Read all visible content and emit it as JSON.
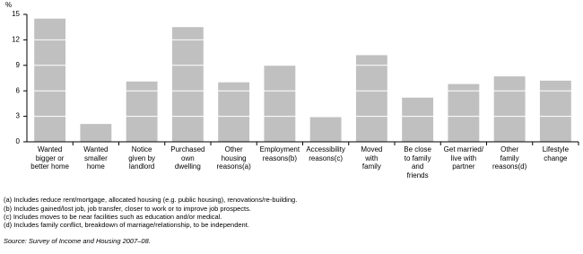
{
  "chart_data": {
    "type": "bar",
    "y_label": "%",
    "categories": [
      "Wanted\nbigger or\nbetter home",
      "Wanted\nsmaller\nhome",
      "Notice\ngiven by\nlandlord",
      "Purchased\nown\ndwelling",
      "Other\nhousing\nreasons(a)",
      "Employment\nreasons(b)",
      "Accessibility\nreasons(c)",
      "Moved\nwith\nfamily",
      "Be close\nto family\nand\nfriends",
      "Get married/\nlive with\npartner",
      "Other\nfamily\nreasons(d)",
      "Lifestyle\nchange"
    ],
    "values": [
      14.5,
      2.1,
      7.1,
      13.5,
      7.0,
      9.0,
      2.9,
      10.2,
      5.2,
      6.8,
      7.7,
      7.2
    ],
    "color": "#c0c0c0",
    "ylim": [
      0,
      15
    ],
    "yticks": [
      0,
      3,
      6,
      9,
      12,
      15
    ],
    "grid": true,
    "footnotes": [
      "(a) Includes reduce rent/mortgage, allocated housing (e.g. public housing), renovations/re-building.",
      "(b) Includes gained/lost job, job transfer, closer to work or to improve job prospects.",
      "(c) Includes moves to be near facilities such as education and/or medical.",
      "(d) Includes family conflict, breakdown of marriage/relationship, to be independent."
    ],
    "source": "Source: Survey of Income and Housing 2007–08."
  }
}
